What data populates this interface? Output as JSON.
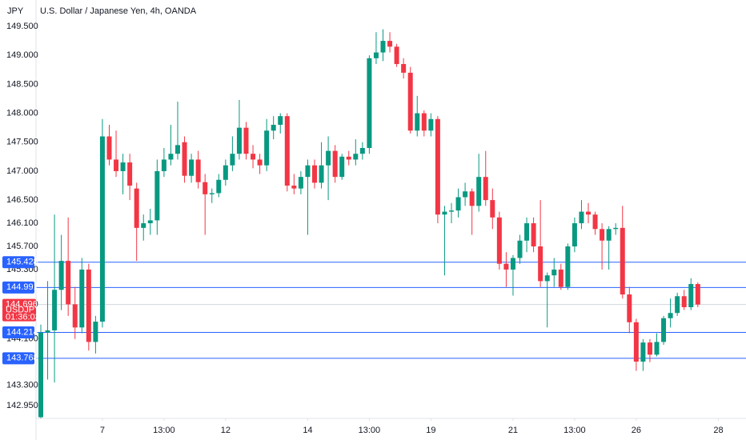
{
  "chart_data": {
    "type": "candlestick",
    "title": "U.S. Dollar / Japanese Yen, 4h, OANDA",
    "currency": "JPY",
    "symbol": "USDJPY",
    "countdown": "01:36:03",
    "up_color": "#089981",
    "down_color": "#f23645",
    "hline_color": "#2962ff",
    "ylim": [
      142.743,
      149.956
    ],
    "yticks": [
      {
        "value": 149.5,
        "label": "149.500"
      },
      {
        "value": 149,
        "label": "149.000"
      },
      {
        "value": 148.5,
        "label": "148.500"
      },
      {
        "value": 148,
        "label": "148.000"
      },
      {
        "value": 147.5,
        "label": "147.500"
      },
      {
        "value": 147,
        "label": "147.000"
      },
      {
        "value": 146.5,
        "label": "146.500"
      },
      {
        "value": 146.1,
        "label": "146.100"
      },
      {
        "value": 145.7,
        "label": "145.700"
      },
      {
        "value": 145.3,
        "label": "145.300"
      },
      {
        "value": 144.7,
        "label": "144.700"
      },
      {
        "value": 144.1,
        "label": "144.100"
      },
      {
        "value": 143.3,
        "label": "143.300"
      },
      {
        "value": 142.95,
        "label": "142.950"
      }
    ],
    "xlim": [
      -0.7,
      103.04
    ],
    "xticks": [
      {
        "value": 9,
        "label": "7"
      },
      {
        "value": 18,
        "label": "13:00"
      },
      {
        "value": 27,
        "label": "12"
      },
      {
        "value": 39,
        "label": "14"
      },
      {
        "value": 48,
        "label": "13:00"
      },
      {
        "value": 57,
        "label": "19"
      },
      {
        "value": 69,
        "label": "21"
      },
      {
        "value": 78,
        "label": "13:00"
      },
      {
        "value": 87,
        "label": "26"
      },
      {
        "value": 99,
        "label": "28"
      }
    ],
    "hlines": [
      145.428,
      144.991,
      144.214,
      143.768
    ],
    "open": [
      142.75,
      144.21,
      144.25,
      144.95,
      145.45,
      144.7,
      144.3,
      145.3,
      144.05,
      144.4,
      147.6,
      147.2,
      147.0,
      147.15,
      146.7,
      146.02,
      146.1,
      146.15,
      147.0,
      147.2,
      147.3,
      147.5,
      146.92,
      147.2,
      146.81,
      146.6,
      146.62,
      146.85,
      147.1,
      147.3,
      147.75,
      147.3,
      147.2,
      147.1,
      147.7,
      147.8,
      147.95,
      146.75,
      146.7,
      146.9,
      147.1,
      146.8,
      147.1,
      147.35,
      146.9,
      147.25,
      147.2,
      147.3,
      147.4,
      148.95,
      149.05,
      149.25,
      149.15,
      148.85,
      148.7,
      147.7,
      148.0,
      147.7,
      147.9,
      146.25,
      146.3,
      146.32,
      146.55,
      146.65,
      146.4,
      146.9,
      146.5,
      146.2,
      145.4,
      145.3,
      145.5,
      145.8,
      146.1,
      145.7,
      145.1,
      145.2,
      145.3,
      145.0,
      145.7,
      146.1,
      146.3,
      146.25,
      146.0,
      145.8,
      146.0,
      146.02,
      144.87,
      144.39,
      143.71,
      144.04,
      143.83,
      144.05,
      144.46,
      144.55,
      144.84,
      144.65,
      145.05
    ],
    "high": [
      144.35,
      145.1,
      146.25,
      145.9,
      146.2,
      145.0,
      145.5,
      145.4,
      144.5,
      147.9,
      147.8,
      147.7,
      147.3,
      147.3,
      146.8,
      146.25,
      146.35,
      147.2,
      147.4,
      147.8,
      148.2,
      147.6,
      147.3,
      147.35,
      146.95,
      146.7,
      146.95,
      147.2,
      147.6,
      148.23,
      147.85,
      147.45,
      147.3,
      147.9,
      147.95,
      148.0,
      148.0,
      146.95,
      147.0,
      147.2,
      147.2,
      147.5,
      147.6,
      147.45,
      147.3,
      147.35,
      147.55,
      147.5,
      149.0,
      149.4,
      149.45,
      149.4,
      149.2,
      148.95,
      148.8,
      148.3,
      148.05,
      148.0,
      147.95,
      146.4,
      146.45,
      146.7,
      146.8,
      146.7,
      147.3,
      147.35,
      146.7,
      146.3,
      145.6,
      145.55,
      145.9,
      146.2,
      146.2,
      146.5,
      145.25,
      145.5,
      145.4,
      145.75,
      146.2,
      146.5,
      146.45,
      146.3,
      146.1,
      146.05,
      146.1,
      146.4,
      145.0,
      144.45,
      144.1,
      144.1,
      144.2,
      144.5,
      144.8,
      144.9,
      144.95,
      145.15,
      145.08
    ],
    "low": [
      142.72,
      143.4,
      143.35,
      144.6,
      144.5,
      144.1,
      144.2,
      143.9,
      143.85,
      144.3,
      147.1,
      146.9,
      146.6,
      146.5,
      145.45,
      145.8,
      145.9,
      145.9,
      146.9,
      147.1,
      147.2,
      146.8,
      146.8,
      146.7,
      145.9,
      146.45,
      146.55,
      146.75,
      147.0,
      147.2,
      147.2,
      147.05,
      146.95,
      147.0,
      147.55,
      147.65,
      146.65,
      146.6,
      146.6,
      145.9,
      146.7,
      146.7,
      146.5,
      146.8,
      146.85,
      147.1,
      147.1,
      147.2,
      147.3,
      148.85,
      148.9,
      149.05,
      148.8,
      148.6,
      147.65,
      147.6,
      147.6,
      147.6,
      146.1,
      145.2,
      146.1,
      146.2,
      146.4,
      145.9,
      146.3,
      146.4,
      146.0,
      145.3,
      145.0,
      144.85,
      145.4,
      145.6,
      145.6,
      145.0,
      144.3,
      145.0,
      144.95,
      144.95,
      145.6,
      146.0,
      146.1,
      145.9,
      145.3,
      145.3,
      145.9,
      144.8,
      144.2,
      143.55,
      143.55,
      143.7,
      143.8,
      144.0,
      144.3,
      144.5,
      144.6,
      144.6,
      144.65
    ],
    "close": [
      144.21,
      144.25,
      144.95,
      145.45,
      144.7,
      144.3,
      145.3,
      144.05,
      144.4,
      147.6,
      147.2,
      147.0,
      147.15,
      146.75,
      146.02,
      146.1,
      146.15,
      147.0,
      147.2,
      147.3,
      147.45,
      146.92,
      147.2,
      146.81,
      146.6,
      146.62,
      146.85,
      147.1,
      147.3,
      147.75,
      147.3,
      147.2,
      147.1,
      147.7,
      147.8,
      147.95,
      146.75,
      146.7,
      146.9,
      147.1,
      146.8,
      147.1,
      147.35,
      146.9,
      147.25,
      147.2,
      147.3,
      147.4,
      148.95,
      149.05,
      149.25,
      149.15,
      148.85,
      148.7,
      147.7,
      148.0,
      147.7,
      147.9,
      146.25,
      146.3,
      146.32,
      146.55,
      146.65,
      146.4,
      146.9,
      146.5,
      146.2,
      145.4,
      145.3,
      145.5,
      145.8,
      146.1,
      145.7,
      145.1,
      145.2,
      145.3,
      145.0,
      145.7,
      146.1,
      146.3,
      146.25,
      146.0,
      145.8,
      146.0,
      146.02,
      144.87,
      144.39,
      143.71,
      144.04,
      143.83,
      144.05,
      144.46,
      144.55,
      144.84,
      144.65,
      145.05,
      144.696
    ]
  }
}
